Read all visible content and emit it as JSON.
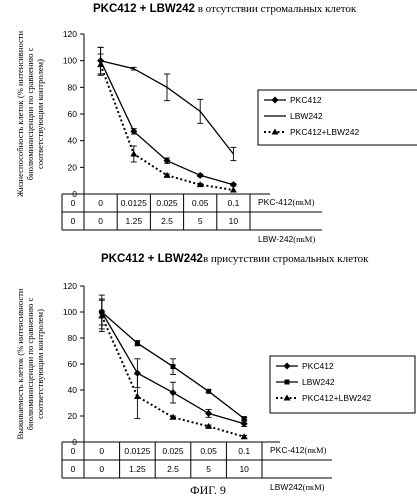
{
  "figure_label": "ФИГ. 9",
  "chart_data": [
    {
      "type": "line",
      "title_main": "PKC412 + LBW242",
      "title_rest": " в отсутствии стромальных клеток",
      "ylabel_lines": [
        "Жизнеспособность клеток (% интенсивности",
        "биолюминисценции по сравнению с",
        "соответствующим контролем)"
      ],
      "ylim": [
        0,
        120
      ],
      "yticks": [
        "0",
        "20",
        "40",
        "60",
        "80",
        "100",
        "120"
      ],
      "categories_pkc": [
        "0",
        "0.0125",
        "0.025",
        "0.05",
        "0.1"
      ],
      "categories_lbw": [
        "0",
        "1.25",
        "2.5",
        "5",
        "10"
      ],
      "row_label_pkc_main": "PKC-412",
      "row_label_pkc_unit": "(пкМ)",
      "row_label_lbw_main": "LBW-242",
      "row_label_lbw_unit": "(пкМ)",
      "legend_position": "right",
      "series": [
        {
          "name": "PKC412",
          "values": [
            100,
            47,
            25,
            14,
            7
          ],
          "errors": [
            10,
            2,
            2,
            1,
            1
          ],
          "marker": "diamond",
          "dash": "solid"
        },
        {
          "name": "LBW242",
          "values": [
            100,
            94,
            80,
            62,
            30
          ],
          "errors": [
            10,
            1,
            10,
            9,
            5
          ],
          "marker": "none",
          "dash": "solid"
        },
        {
          "name": "PKC412+LBW242",
          "values": [
            97,
            30,
            14,
            7,
            3
          ],
          "errors": [
            8,
            6,
            1,
            1,
            0
          ],
          "marker": "triangle",
          "dash": "dotted"
        }
      ]
    },
    {
      "type": "line",
      "title_main": "PKC412 + LBW242",
      "title_rest": "в присутствии стромальных клеток",
      "ylabel_lines": [
        "Выживаемость клеток (% интенсивности",
        "биолюминисценции по сравнению с",
        "соответствующим контролем)"
      ],
      "ylim": [
        0,
        120
      ],
      "yticks": [
        "0",
        "20",
        "40",
        "60",
        "80",
        "100",
        "120"
      ],
      "categories_pkc": [
        "0",
        "0.0125",
        "0.025",
        "0.05",
        "0.1"
      ],
      "categories_lbw": [
        "0",
        "1.25",
        "2.5",
        "5",
        "10"
      ],
      "row_label_pkc_main": "PKC-412",
      "row_label_pkc_unit": "(пкМ)",
      "row_label_lbw_main": "LBW242",
      "row_label_lbw_unit": "(пкМ)",
      "legend_position": "right",
      "series": [
        {
          "name": "PKC412",
          "values": [
            100,
            53,
            38,
            22,
            14
          ],
          "errors": [
            10,
            11,
            8,
            3,
            2
          ],
          "marker": "diamond",
          "dash": "solid"
        },
        {
          "name": "LBW242",
          "values": [
            100,
            76,
            58,
            39,
            18
          ],
          "errors": [
            13,
            2,
            6,
            1,
            1
          ],
          "marker": "square",
          "dash": "solid"
        },
        {
          "name": "PKC412+LBW242",
          "values": [
            97,
            35,
            19,
            12,
            4
          ],
          "errors": [
            12,
            17,
            1,
            1,
            1
          ],
          "marker": "triangle",
          "dash": "dotted"
        }
      ]
    }
  ]
}
